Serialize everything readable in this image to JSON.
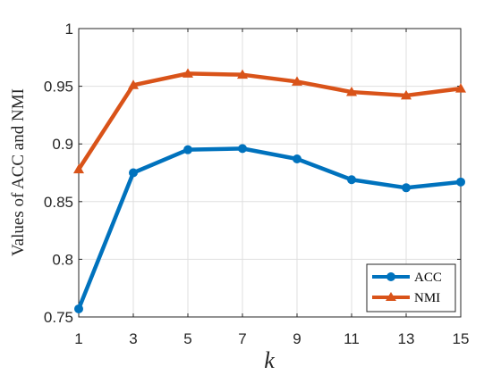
{
  "chart_data": {
    "type": "line",
    "title": "",
    "xlabel": "k",
    "ylabel": "Values of ACC and NMI",
    "x": [
      1,
      3,
      5,
      7,
      9,
      11,
      13,
      15
    ],
    "xlim": [
      1,
      15
    ],
    "ylim": [
      0.75,
      1
    ],
    "xticks": [
      "1",
      "3",
      "5",
      "7",
      "9",
      "11",
      "13",
      "15"
    ],
    "yticks": [
      "0.75",
      "0.8",
      "0.85",
      "0.9",
      "0.95",
      "1"
    ],
    "ytick_values": [
      0.75,
      0.8,
      0.85,
      0.9,
      0.95,
      1
    ],
    "grid": true,
    "legend_position": "bottom-right",
    "series": [
      {
        "name": "ACC",
        "color": "#0072BD",
        "marker": "circle",
        "values": [
          0.757,
          0.875,
          0.895,
          0.896,
          0.887,
          0.869,
          0.862,
          0.867
        ]
      },
      {
        "name": "NMI",
        "color": "#D95319",
        "marker": "triangle",
        "values": [
          0.878,
          0.951,
          0.961,
          0.96,
          0.954,
          0.945,
          0.942,
          0.948
        ]
      }
    ]
  }
}
